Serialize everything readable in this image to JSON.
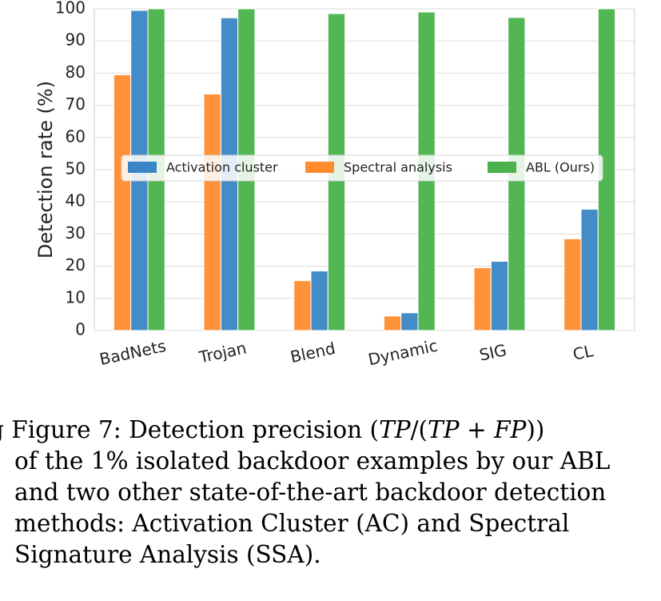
{
  "chart_data": {
    "type": "bar",
    "categories": [
      "BadNets",
      "Trojan",
      "Blend",
      "Dynamic",
      "SIG",
      "CL"
    ],
    "series": [
      {
        "name": "Spectral analysis",
        "color": "#ff8b2e",
        "values": [
          79.5,
          73.5,
          15.5,
          4.5,
          19.5,
          28.5
        ]
      },
      {
        "name": "Activation cluster",
        "color": "#3a86c4",
        "values": [
          99.5,
          97.2,
          18.5,
          5.5,
          21.5,
          37.7
        ]
      },
      {
        "name": "ABL (Ours)",
        "color": "#49b24a",
        "values": [
          100,
          100,
          98.5,
          99,
          97.3,
          100
        ]
      }
    ],
    "legend_order": [
      "Activation cluster",
      "Spectral analysis",
      "ABL (Ours)"
    ],
    "legend_placement": "center",
    "ylabel": "Detection rate (%)",
    "xlabel": "",
    "ylim": [
      0,
      100
    ],
    "yticks": [
      0,
      10,
      20,
      30,
      40,
      50,
      60,
      70,
      80,
      90,
      100
    ],
    "grid": true
  },
  "caption": {
    "lines": [
      "g Figure 7: Detection precision (TP/(TP + FP))",
      "of the 1% isolated backdoor examples by our ABL",
      "and two other state-of-the-art backdoor detection",
      "methods:  Activation Cluster (AC) and Spectral",
      "Signature Analysis (SSA)."
    ]
  }
}
